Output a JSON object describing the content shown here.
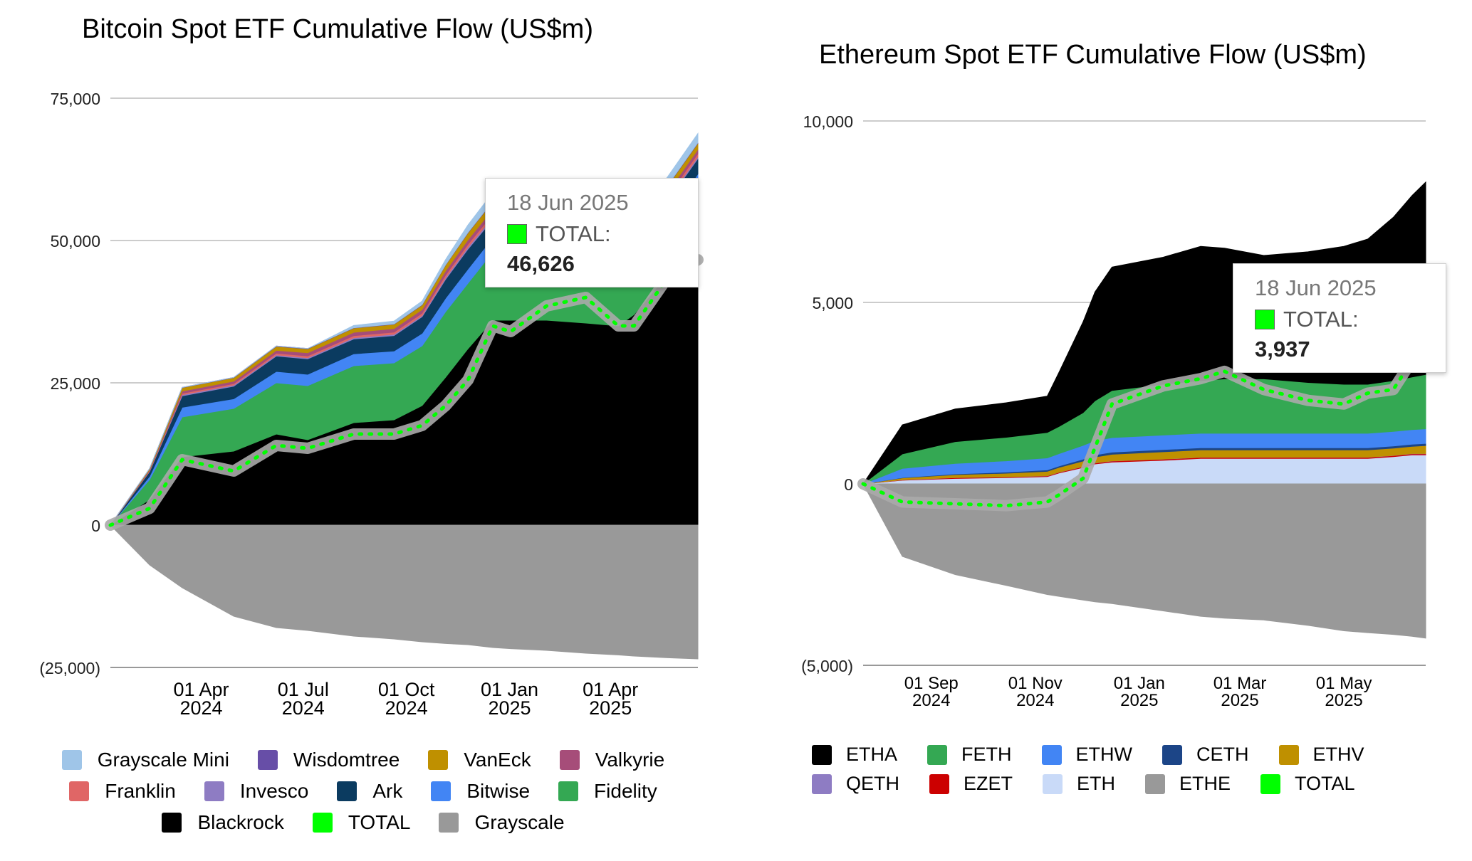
{
  "chart_data": [
    {
      "type": "area",
      "title": "Bitcoin Spot ETF Cumulative Flow (US$m)",
      "xlabel": "",
      "ylabel": "",
      "ylim": [
        -25000,
        75000
      ],
      "y_ticks": [
        "75,000",
        "50,000",
        "25,000",
        "0",
        "(25,000)"
      ],
      "y_tick_values": [
        75000,
        50000,
        25000,
        0,
        -25000
      ],
      "x": [
        "2024-01-11",
        "2024-02-15",
        "2024-03-15",
        "2024-04-30",
        "2024-06-07",
        "2024-07-05",
        "2024-08-15",
        "2024-09-20",
        "2024-10-15",
        "2024-11-05",
        "2024-11-25",
        "2024-12-17",
        "2025-01-02",
        "2025-02-03",
        "2025-03-10",
        "2025-04-08",
        "2025-04-22",
        "2025-05-22",
        "2025-06-18"
      ],
      "x_ticks": [
        {
          "date": "2024-04-01",
          "line1": "01 Apr",
          "line2": "2024"
        },
        {
          "date": "2024-07-01",
          "line1": "01 Jul",
          "line2": "2024"
        },
        {
          "date": "2024-10-01",
          "line1": "01 Oct",
          "line2": "2024"
        },
        {
          "date": "2025-01-01",
          "line1": "01 Jan",
          "line2": "2025"
        },
        {
          "date": "2025-04-01",
          "line1": "01 Apr",
          "line2": "2025"
        }
      ],
      "series": [
        {
          "name": "Blackrock",
          "color": "#000000",
          "values": [
            0,
            4500,
            12000,
            13000,
            16000,
            15000,
            18000,
            18500,
            21000,
            26000,
            31000,
            36000,
            36000,
            36000,
            35500,
            35000,
            37000,
            44000,
            51000
          ]
        },
        {
          "name": "Fidelity",
          "color": "#34a853",
          "values": [
            0,
            3500,
            7000,
            7500,
            9000,
            9500,
            10000,
            10000,
            10500,
            11500,
            11500,
            12000,
            12000,
            11000,
            9500,
            7500,
            7500,
            8000,
            8500
          ]
        },
        {
          "name": "Bitwise",
          "color": "#4285f4",
          "values": [
            0,
            600,
            1700,
            1700,
            2000,
            2000,
            2100,
            2100,
            2200,
            2400,
            2500,
            2500,
            2500,
            2400,
            2200,
            2100,
            2100,
            2200,
            2200
          ]
        },
        {
          "name": "Ark",
          "color": "#0b3b60",
          "values": [
            0,
            800,
            2000,
            2200,
            2700,
            2700,
            2600,
            2700,
            2900,
            3300,
            3500,
            3200,
            3000,
            3000,
            2800,
            2700,
            2700,
            2700,
            2700
          ]
        },
        {
          "name": "Invesco",
          "color": "#8e7cc3",
          "values": [
            0,
            80,
            200,
            200,
            200,
            200,
            220,
            220,
            230,
            300,
            350,
            400,
            400,
            400,
            350,
            300,
            300,
            300,
            300
          ]
        },
        {
          "name": "Franklin",
          "color": "#e06666",
          "values": [
            0,
            100,
            250,
            250,
            300,
            320,
            350,
            380,
            400,
            450,
            500,
            550,
            600,
            600,
            600,
            550,
            550,
            550,
            550
          ]
        },
        {
          "name": "Valkyrie",
          "color": "#a64d79",
          "values": [
            0,
            150,
            400,
            450,
            500,
            550,
            600,
            620,
            650,
            750,
            800,
            850,
            850,
            850,
            800,
            750,
            750,
            750,
            750
          ]
        },
        {
          "name": "VanEck",
          "color": "#bf9000",
          "values": [
            0,
            200,
            600,
            600,
            700,
            700,
            750,
            750,
            800,
            1000,
            1200,
            1300,
            1300,
            1300,
            1200,
            1100,
            1100,
            1100,
            1100
          ]
        },
        {
          "name": "Wisdomtree",
          "color": "#674ea7",
          "values": [
            0,
            20,
            40,
            50,
            60,
            60,
            60,
            70,
            70,
            80,
            90,
            100,
            100,
            100,
            100,
            100,
            100,
            100,
            100
          ]
        },
        {
          "name": "Grayscale Mini",
          "color": "#9fc5e8",
          "values": [
            0,
            0,
            0,
            0,
            0,
            0,
            400,
            500,
            600,
            900,
            1300,
            1500,
            1600,
            1600,
            1500,
            1400,
            1400,
            1500,
            1600
          ]
        },
        {
          "name": "Grayscale",
          "color": "#999999",
          "values": [
            0,
            -7000,
            -11000,
            -16000,
            -18000,
            -18500,
            -19500,
            -20000,
            -20500,
            -20800,
            -21000,
            -21500,
            -21700,
            -22000,
            -22500,
            -22800,
            -23000,
            -23300,
            -23500
          ]
        }
      ],
      "total": {
        "name": "TOTAL",
        "color": "#00ff00",
        "values": [
          0,
          2950,
          11500,
          9500,
          14000,
          13500,
          16000,
          16000,
          17500,
          21000,
          25500,
          35000,
          34000,
          38500,
          40000,
          35000,
          35000,
          43500,
          46626
        ]
      },
      "tooltip": {
        "date": "18 Jun 2025",
        "label": "TOTAL:",
        "value": "46,626"
      },
      "legend_placement": "bottom",
      "legend_order": [
        [
          "Grayscale Mini",
          "Wisdomtree",
          "VanEck",
          "Valkyrie"
        ],
        [
          "Franklin",
          "Invesco",
          "Ark",
          "Bitwise",
          "Fidelity"
        ],
        [
          "Blackrock",
          "TOTAL",
          "Grayscale"
        ]
      ],
      "grid": true
    },
    {
      "type": "area",
      "title": "Ethereum Spot ETF Cumulative Flow (US$m)",
      "xlabel": "",
      "ylabel": "",
      "ylim": [
        -5000,
        10000
      ],
      "y_ticks": [
        "10,000",
        "5,000",
        "0",
        "(5,000)"
      ],
      "y_tick_values": [
        10000,
        5000,
        0,
        -5000
      ],
      "x": [
        "2024-07-23",
        "2024-08-15",
        "2024-09-15",
        "2024-10-15",
        "2024-11-08",
        "2024-11-15",
        "2024-11-29",
        "2024-12-06",
        "2024-12-16",
        "2025-01-15",
        "2025-02-06",
        "2025-02-20",
        "2025-03-15",
        "2025-04-10",
        "2025-05-01",
        "2025-05-15",
        "2025-05-30",
        "2025-06-10",
        "2025-06-18"
      ],
      "x_ticks": [
        {
          "date": "2024-09-01",
          "line1": "01 Sep",
          "line2": "2024"
        },
        {
          "date": "2024-11-01",
          "line1": "01 Nov",
          "line2": "2024"
        },
        {
          "date": "2025-01-01",
          "line1": "01 Jan",
          "line2": "2025"
        },
        {
          "date": "2025-03-01",
          "line1": "01 Mar",
          "line2": "2025"
        },
        {
          "date": "2025-05-01",
          "line1": "01 May",
          "line2": "2025"
        }
      ],
      "series": [
        {
          "name": "ETH",
          "color": "#c9daf8",
          "values": [
            0,
            100,
            150,
            170,
            200,
            300,
            450,
            550,
            600,
            650,
            700,
            700,
            700,
            700,
            700,
            700,
            750,
            800,
            800
          ]
        },
        {
          "name": "EZET",
          "color": "#cc0000",
          "values": [
            0,
            10,
            20,
            20,
            20,
            20,
            25,
            25,
            30,
            30,
            30,
            30,
            30,
            30,
            30,
            30,
            30,
            30,
            30
          ]
        },
        {
          "name": "QETH",
          "color": "#8e7cc3",
          "values": [
            0,
            5,
            5,
            5,
            5,
            5,
            5,
            5,
            5,
            5,
            5,
            5,
            5,
            5,
            5,
            5,
            5,
            5,
            5
          ]
        },
        {
          "name": "ETHV",
          "color": "#bf9000",
          "values": [
            0,
            50,
            80,
            100,
            120,
            130,
            150,
            160,
            180,
            200,
            200,
            200,
            200,
            200,
            200,
            200,
            200,
            200,
            220
          ]
        },
        {
          "name": "CETH",
          "color": "#1c4587",
          "values": [
            0,
            10,
            20,
            30,
            40,
            40,
            50,
            60,
            60,
            60,
            60,
            60,
            60,
            60,
            60,
            60,
            60,
            60,
            60
          ]
        },
        {
          "name": "ETHW",
          "color": "#4285f4",
          "values": [
            0,
            250,
            290,
            310,
            330,
            340,
            380,
            390,
            400,
            400,
            400,
            400,
            400,
            400,
            400,
            400,
            400,
            400,
            400
          ]
        },
        {
          "name": "FETH",
          "color": "#34a853",
          "values": [
            0,
            400,
            600,
            650,
            700,
            750,
            900,
            1100,
            1300,
            1400,
            1450,
            1500,
            1500,
            1400,
            1350,
            1350,
            1400,
            1450,
            1500
          ]
        },
        {
          "name": "ETHA",
          "color": "#000000",
          "values": [
            0,
            800,
            900,
            950,
            1000,
            1500,
            2500,
            3000,
            3400,
            3500,
            3700,
            3600,
            3400,
            3600,
            3800,
            4000,
            4500,
            5000,
            5300
          ]
        },
        {
          "name": "ETHE",
          "color": "#999999",
          "values": [
            0,
            -2000,
            -2500,
            -2800,
            -3050,
            -3100,
            -3200,
            -3250,
            -3300,
            -3500,
            -3650,
            -3700,
            -3750,
            -3900,
            -4050,
            -4100,
            -4150,
            -4200,
            -4250
          ]
        }
      ],
      "total": {
        "name": "TOTAL",
        "color": "#00ff00",
        "values": [
          0,
          -500,
          -550,
          -600,
          -500,
          -300,
          150,
          1000,
          2200,
          2700,
          2900,
          3100,
          2600,
          2300,
          2200,
          2500,
          2600,
          3400,
          3937
        ]
      },
      "tooltip": {
        "date": "18 Jun 2025",
        "label": "TOTAL:",
        "value": "3,937"
      },
      "legend_placement": "bottom",
      "legend_order": [
        [
          "ETHA",
          "FETH",
          "ETHW",
          "CETH",
          "ETHV"
        ],
        [
          "QETH",
          "EZET",
          "ETH",
          "ETHE",
          "TOTAL"
        ]
      ],
      "grid": true
    }
  ]
}
